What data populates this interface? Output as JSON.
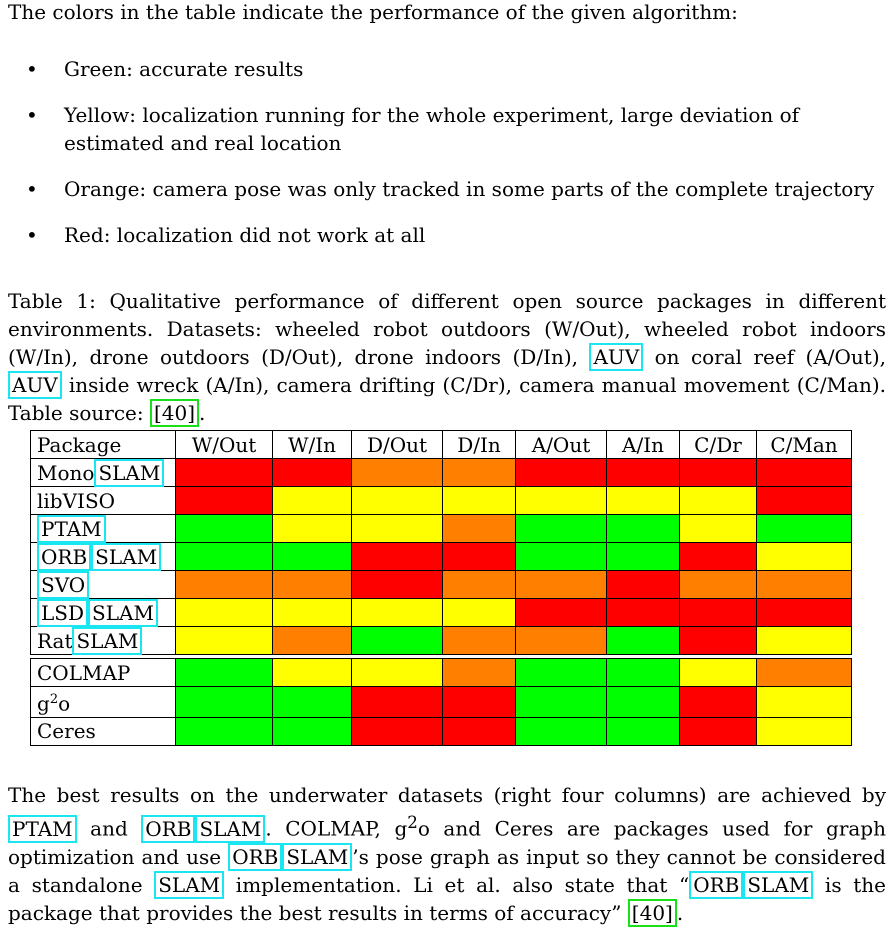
{
  "intro": "The colors in the table indicate the performance of the given algorithm:",
  "bullets": [
    {
      "dot": "•",
      "text": "Green: accurate results"
    },
    {
      "dot": "•",
      "text": "Yellow: localization running for the whole experiment, large deviation of estimated and real location"
    },
    {
      "dot": "•",
      "text": "Orange: camera pose was only tracked in some parts of the complete trajectory"
    },
    {
      "dot": "•",
      "text": "Red: localization did not work at all"
    }
  ],
  "caption": {
    "p1": "Table 1: Qualitative performance of different open source packages in different environments. Datasets: wheeled robot outdoors (W/Out), wheeled robot indoors (W/In), drone outdoors (D/Out), drone indoors (D/In), ",
    "auv1": "AUV",
    "p2": " on coral reef (A/Out), ",
    "auv2": "AUV",
    "p3": " inside wreck (A/In), camera drifting (C/Dr), camera manual movement (C/Man). Table source: ",
    "ref": "[40]",
    "p4": "."
  },
  "colors": {
    "green": "#00ff00",
    "yellow": "#ffff00",
    "orange": "#ff8000",
    "red": "#ff0000",
    "link_box": "#19e6f0",
    "cite_box": "#19e019"
  },
  "table": {
    "headers": [
      "Package",
      "W/Out",
      "W/In",
      "D/Out",
      "D/In",
      "A/Out",
      "A/In",
      "C/Dr",
      "C/Man"
    ],
    "rows": [
      {
        "name_a": "Mono",
        "name_b": "SLAM",
        "cells": [
          "red",
          "red",
          "orange",
          "orange",
          "red",
          "red",
          "red",
          "red"
        ]
      },
      {
        "name_a": "libVISO",
        "name_b": "",
        "cells": [
          "red",
          "yellow",
          "yellow",
          "yellow",
          "yellow",
          "yellow",
          "yellow",
          "red"
        ]
      },
      {
        "name_a": "",
        "name_b": "PTAM",
        "cells": [
          "green",
          "yellow",
          "yellow",
          "orange",
          "green",
          "green",
          "yellow",
          "green"
        ]
      },
      {
        "name_a": "",
        "name_b": "ORB",
        "name_c": "SLAM",
        "cells": [
          "green",
          "green",
          "red",
          "red",
          "green",
          "green",
          "red",
          "yellow"
        ]
      },
      {
        "name_a": "",
        "name_b": "SVO",
        "cells": [
          "orange",
          "orange",
          "red",
          "orange",
          "orange",
          "red",
          "orange",
          "orange"
        ]
      },
      {
        "name_a": "",
        "name_b": "LSD",
        "name_c": "SLAM",
        "cells": [
          "yellow",
          "yellow",
          "yellow",
          "yellow",
          "red",
          "red",
          "red",
          "red"
        ]
      },
      {
        "name_a": "Rat",
        "name_b": "SLAM",
        "cells": [
          "yellow",
          "orange",
          "green",
          "orange",
          "orange",
          "green",
          "red",
          "yellow"
        ]
      }
    ],
    "rows2": [
      {
        "name": "COLMAP",
        "cells": [
          "green",
          "yellow",
          "yellow",
          "orange",
          "green",
          "green",
          "yellow",
          "orange"
        ]
      },
      {
        "name": "g",
        "sup": "2",
        "name_end": "o",
        "cells": [
          "green",
          "green",
          "red",
          "red",
          "green",
          "green",
          "red",
          "yellow"
        ]
      },
      {
        "name": "Ceres",
        "cells": [
          "green",
          "green",
          "red",
          "red",
          "green",
          "green",
          "red",
          "yellow"
        ]
      }
    ]
  },
  "outro": {
    "t1": "The best results on the underwater datasets (right four columns) are achieved by ",
    "ptam": "PTAM",
    "t2": " and ",
    "orb1": "ORB",
    "slam1": "SLAM",
    "t3": ". COLMAP, g",
    "sup": "2",
    "t4": "o and Ceres are packages used for graph optimization and use ",
    "orb2": "ORB",
    "slam2": "SLAM",
    "t5": "’s pose graph as input so they cannot be considered a standalone ",
    "slam3": "SLAM",
    "t6": " implementation. Li et al. also state that “",
    "orb3": "ORB",
    "slam4": "SLAM",
    "t7": " is the package that provides the best results in terms of accuracy” ",
    "ref": "[40]",
    "t8": "."
  }
}
